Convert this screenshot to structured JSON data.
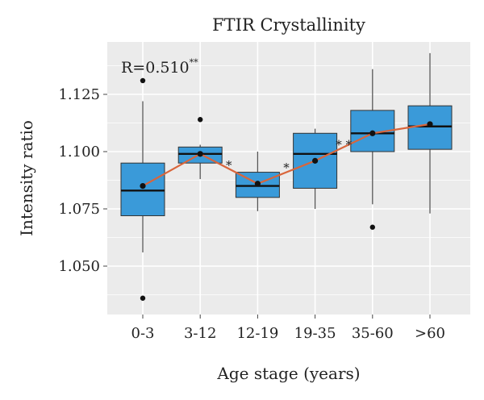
{
  "chart_data": {
    "type": "box",
    "title": "FTIR Crystallinity",
    "xlabel": "Age stage (years)",
    "ylabel": "Intensity ratio",
    "annotation": "R=0.510",
    "annotation_sup": "**",
    "categories": [
      "0-3",
      "3-12",
      "12-19",
      "19-35",
      "35-60",
      ">60"
    ],
    "yticks": [
      1.05,
      1.075,
      1.1,
      1.125
    ],
    "ytick_labels": [
      "1.050",
      "1.075",
      "1.100",
      "1.125"
    ],
    "ylim": [
      1.032,
      1.146
    ],
    "grid": true,
    "boxes": [
      {
        "category": "0-3",
        "min": 1.056,
        "q1": 1.072,
        "median": 1.083,
        "q3": 1.095,
        "max": 1.122,
        "mean": 1.085,
        "outliers": [
          1.131,
          1.036
        ]
      },
      {
        "category": "3-12",
        "min": 1.088,
        "q1": 1.095,
        "median": 1.099,
        "q3": 1.102,
        "max": 1.103,
        "mean": 1.099,
        "outliers": [
          1.114
        ]
      },
      {
        "category": "12-19",
        "min": 1.074,
        "q1": 1.08,
        "median": 1.085,
        "q3": 1.091,
        "max": 1.1,
        "mean": 1.086,
        "outliers": []
      },
      {
        "category": "19-35",
        "min": 1.075,
        "q1": 1.084,
        "median": 1.099,
        "q3": 1.108,
        "max": 1.11,
        "mean": 1.096,
        "outliers": []
      },
      {
        "category": "35-60",
        "min": 1.077,
        "q1": 1.1,
        "median": 1.108,
        "q3": 1.118,
        "max": 1.136,
        "mean": 1.108,
        "outliers": [
          1.067
        ]
      },
      {
        "category": ">60",
        "min": 1.073,
        "q1": 1.101,
        "median": 1.111,
        "q3": 1.12,
        "max": 1.143,
        "mean": 1.112,
        "outliers": []
      }
    ],
    "mean_line": {
      "x": [
        "0-3",
        "3-12",
        "12-19",
        "19-35",
        "35-60",
        ">60"
      ],
      "y": [
        1.085,
        1.099,
        1.086,
        1.096,
        1.108,
        1.112
      ]
    },
    "significance_markers": [
      {
        "between": [
          "3-12",
          "12-19"
        ],
        "label": "*",
        "y": 1.095
      },
      {
        "between": [
          "12-19",
          "19-35"
        ],
        "label": "*",
        "y": 1.094
      },
      {
        "between": [
          "19-35",
          "35-60"
        ],
        "label": "* *",
        "y": 1.104
      }
    ],
    "colors": {
      "box_fill": "#3a9ad9",
      "mean_line": "#d9653b",
      "panel": "#ebebeb",
      "grid": "#ffffff"
    }
  }
}
